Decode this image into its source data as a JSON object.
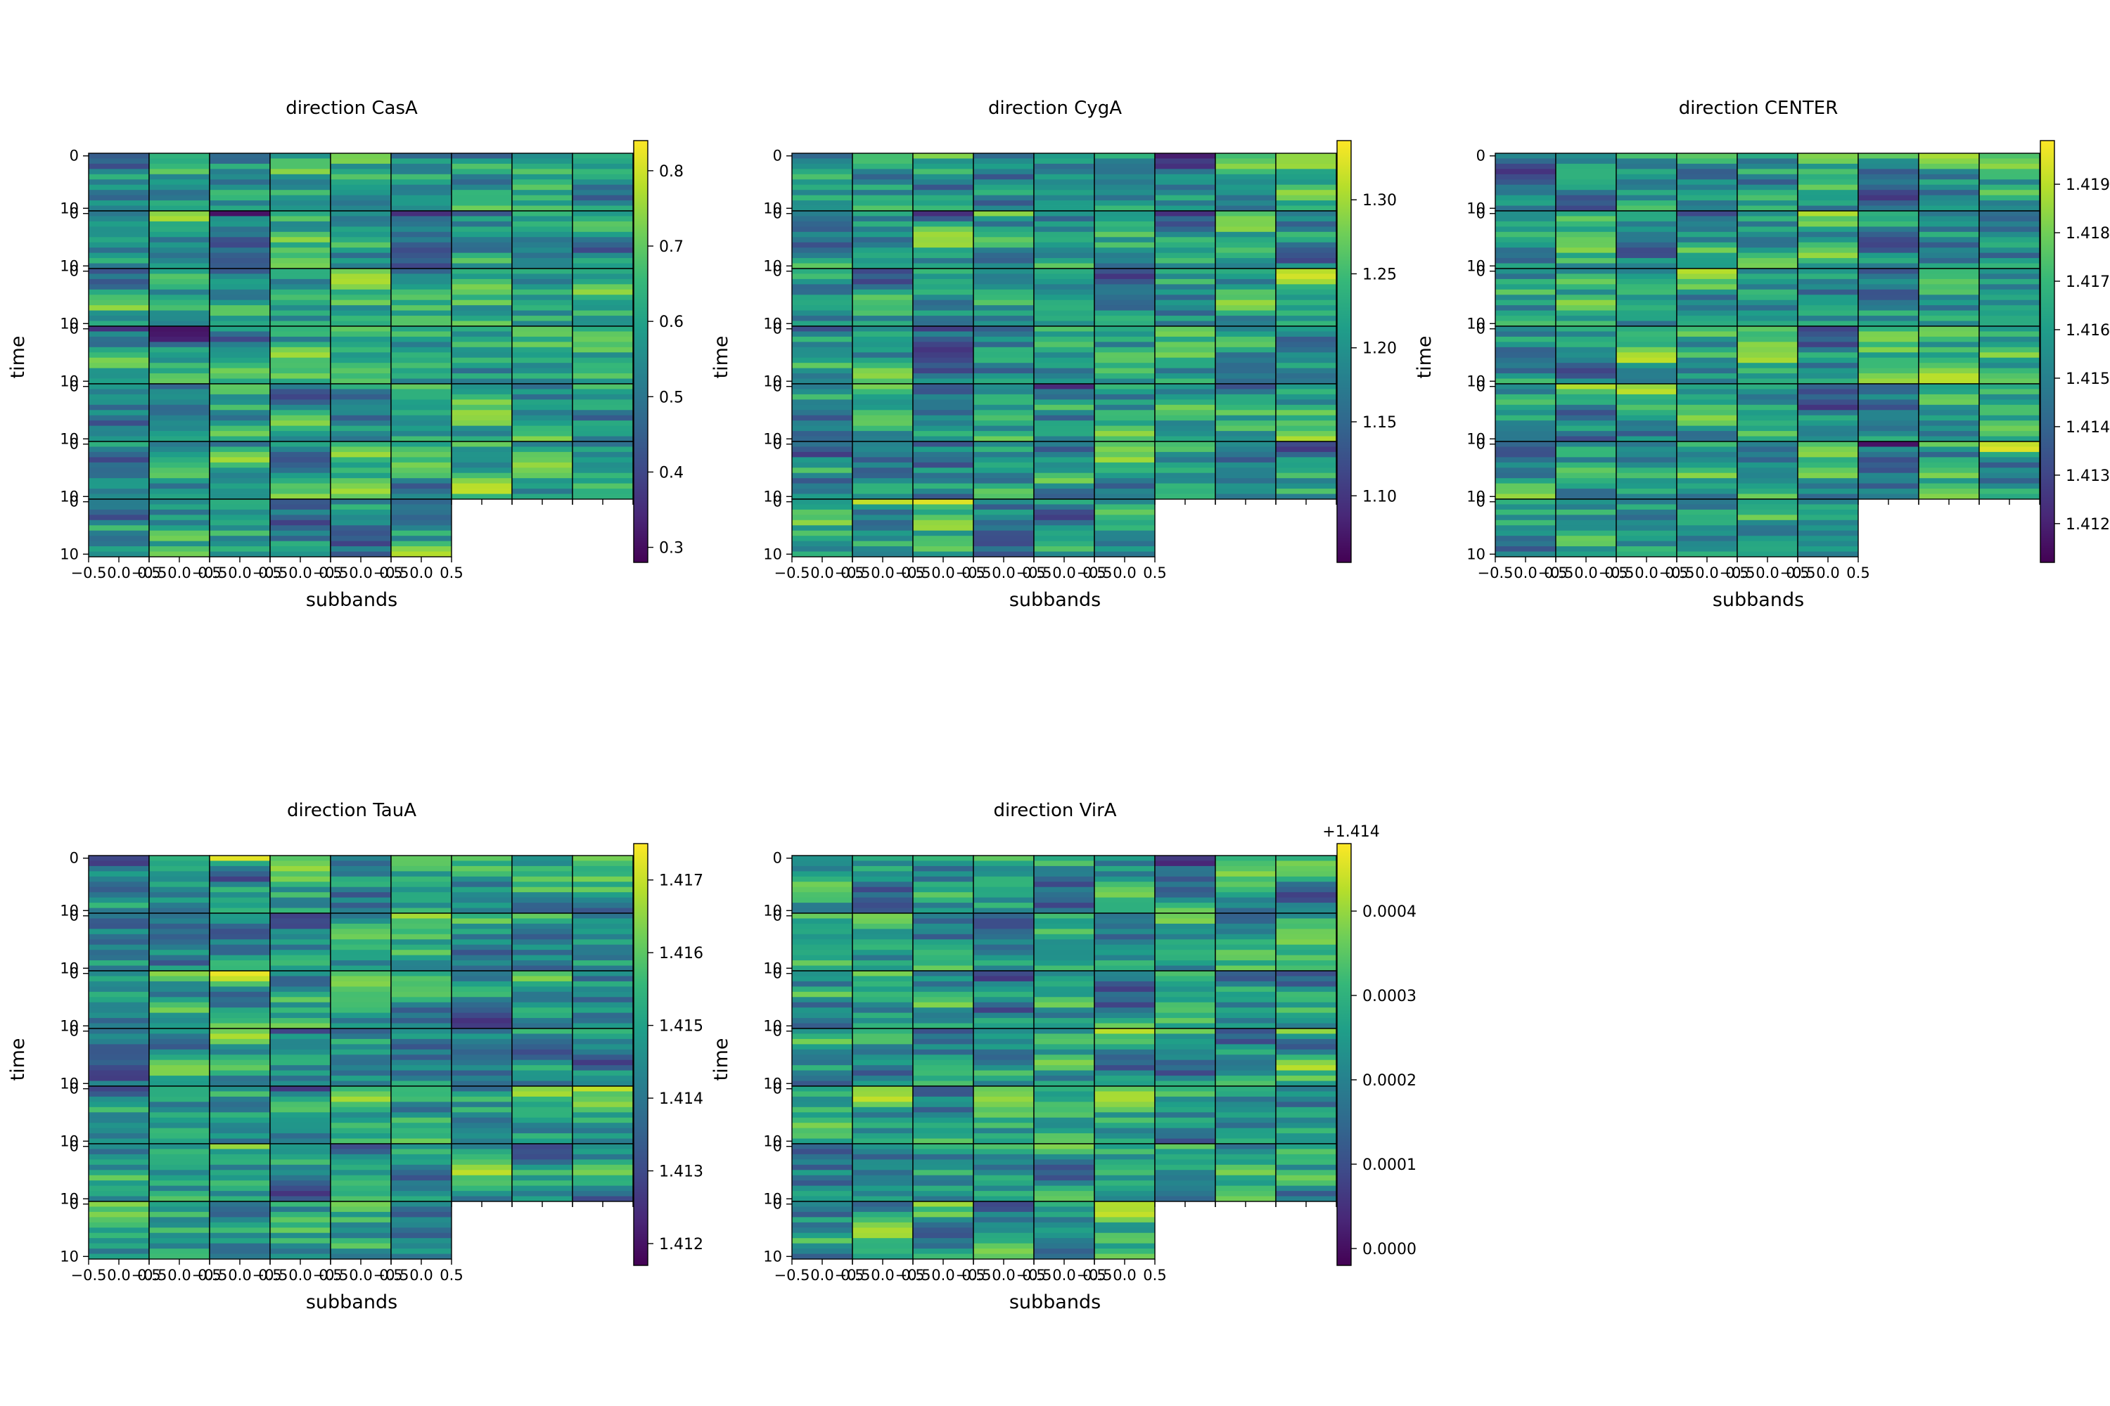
{
  "figure": {
    "colormap": "viridis",
    "colormap_stops": [
      "#440154",
      "#482878",
      "#3e4a89",
      "#31688e",
      "#26828e",
      "#1f9e89",
      "#35b779",
      "#6ece58",
      "#b5de2b",
      "#fde725"
    ]
  },
  "chart_data": [
    {
      "type": "heatmap",
      "title": "direction CasA",
      "xlabel": "subbands",
      "ylabel": "time",
      "x_tick_labels": [
        "−0.5",
        "0.0",
        "0.5"
      ],
      "y_tick_labels": [
        "0",
        "10"
      ],
      "cell_xlim": [
        -0.5,
        0.5
      ],
      "cell_ylim": [
        0,
        11
      ],
      "subband_columns": 9,
      "time_blocks": 7,
      "colorbar": {
        "range": [
          0.28,
          0.84
        ],
        "ticks": [
          "0.3",
          "0.4",
          "0.5",
          "0.6",
          "0.7",
          "0.8"
        ],
        "offset_label": ""
      },
      "seed": 11
    },
    {
      "type": "heatmap",
      "title": "direction CygA",
      "xlabel": "subbands",
      "ylabel": "time",
      "x_tick_labels": [
        "−0.5",
        "0.0",
        "0.5"
      ],
      "y_tick_labels": [
        "0",
        "10"
      ],
      "cell_xlim": [
        -0.5,
        0.5
      ],
      "cell_ylim": [
        0,
        11
      ],
      "subband_columns": 9,
      "time_blocks": 7,
      "colorbar": {
        "range": [
          1.055,
          1.34
        ],
        "ticks": [
          "1.10",
          "1.15",
          "1.20",
          "1.25",
          "1.30"
        ],
        "offset_label": ""
      },
      "seed": 23
    },
    {
      "type": "heatmap",
      "title": "direction CENTER",
      "xlabel": "subbands",
      "ylabel": "time",
      "x_tick_labels": [
        "−0.5",
        "0.0",
        "0.5"
      ],
      "y_tick_labels": [
        "0",
        "10"
      ],
      "cell_xlim": [
        -0.5,
        0.5
      ],
      "cell_ylim": [
        0,
        11
      ],
      "subband_columns": 9,
      "time_blocks": 7,
      "colorbar": {
        "range": [
          1.4112,
          1.4199
        ],
        "ticks": [
          "1.412",
          "1.413",
          "1.414",
          "1.415",
          "1.416",
          "1.417",
          "1.418",
          "1.419"
        ],
        "offset_label": ""
      },
      "seed": 37
    },
    {
      "type": "heatmap",
      "title": "direction TauA",
      "xlabel": "subbands",
      "ylabel": "time",
      "x_tick_labels": [
        "−0.5",
        "0.0",
        "0.5"
      ],
      "y_tick_labels": [
        "0",
        "10"
      ],
      "cell_xlim": [
        -0.5,
        0.5
      ],
      "cell_ylim": [
        0,
        11
      ],
      "subband_columns": 9,
      "time_blocks": 7,
      "colorbar": {
        "range": [
          1.4117,
          1.4175
        ],
        "ticks": [
          "1.412",
          "1.413",
          "1.414",
          "1.415",
          "1.416",
          "1.417"
        ],
        "offset_label": ""
      },
      "seed": 53
    },
    {
      "type": "heatmap",
      "title": "direction VirA",
      "xlabel": "subbands",
      "ylabel": "time",
      "x_tick_labels": [
        "−0.5",
        "0.0",
        "0.5"
      ],
      "y_tick_labels": [
        "0",
        "10"
      ],
      "cell_xlim": [
        -0.5,
        0.5
      ],
      "cell_ylim": [
        0,
        11
      ],
      "subband_columns": 9,
      "time_blocks": 7,
      "colorbar": {
        "range": [
          -2e-05,
          0.00048
        ],
        "ticks": [
          "0.0000",
          "0.0001",
          "0.0002",
          "0.0003",
          "0.0004"
        ],
        "offset_label": "+1.414"
      },
      "seed": 71
    }
  ]
}
